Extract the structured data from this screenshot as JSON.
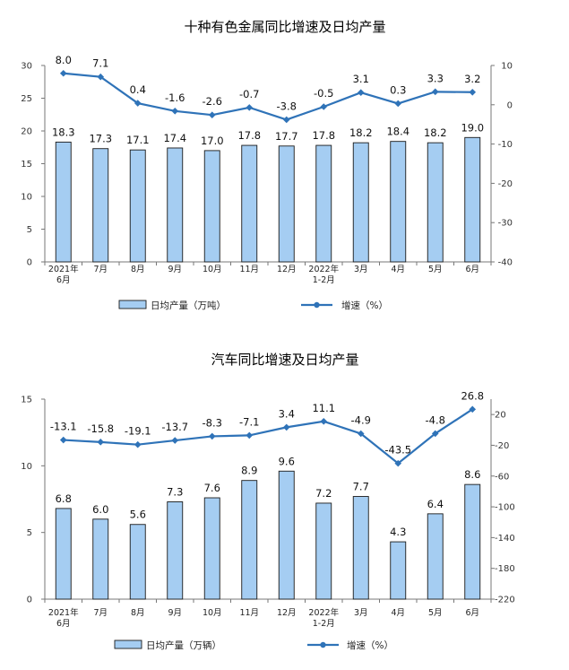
{
  "chart_data": [
    {
      "type": "bar+line",
      "title": "十种有色金属同比增速及日均产量",
      "categories": [
        [
          "2021年",
          "6月"
        ],
        [
          "7月"
        ],
        [
          "8月"
        ],
        [
          "9月"
        ],
        [
          "10月"
        ],
        [
          "11月"
        ],
        [
          "12月"
        ],
        [
          "2022年",
          "1-2月"
        ],
        [
          "3月"
        ],
        [
          "4月"
        ],
        [
          "5月"
        ],
        [
          "6月"
        ]
      ],
      "series": [
        {
          "name": "日均产量（万吨）",
          "type": "bar",
          "axis": "left",
          "values": [
            18.3,
            17.3,
            17.1,
            17.4,
            17.0,
            17.8,
            17.7,
            17.8,
            18.2,
            18.4,
            18.2,
            19.0
          ]
        },
        {
          "name": "增速（%）",
          "type": "line",
          "axis": "right",
          "values": [
            8.0,
            7.1,
            0.4,
            -1.6,
            -2.6,
            -0.7,
            -3.8,
            -0.5,
            3.1,
            0.3,
            3.3,
            3.2
          ]
        }
      ],
      "ylim_left": [
        0,
        30
      ],
      "yticks_left": [
        0,
        5,
        10,
        15,
        20,
        25,
        30
      ],
      "ylim_right": [
        -40,
        10
      ],
      "yticks_right": [
        -40,
        -30,
        -20,
        -10,
        0,
        10
      ],
      "bar_labels": [
        "18.3",
        "17.3",
        "17.1",
        "17.4",
        "17.0",
        "17.8",
        "17.7",
        "17.8",
        "18.2",
        "18.4",
        "18.2",
        "19.0"
      ],
      "line_labels": [
        "8.0",
        "7.1",
        "0.4",
        "-1.6",
        "-2.6",
        "-0.7",
        "-3.8",
        "-0.5",
        "3.1",
        "0.3",
        "3.3",
        "3.2"
      ],
      "legend": [
        "日均产量（万吨）",
        "增速（%）"
      ],
      "legend_position": "bottom",
      "grid": false
    },
    {
      "type": "bar+line",
      "title": "汽车同比增速及日均产量",
      "categories": [
        [
          "2021年",
          "6月"
        ],
        [
          "7月"
        ],
        [
          "8月"
        ],
        [
          "9月"
        ],
        [
          "10月"
        ],
        [
          "11月"
        ],
        [
          "12月"
        ],
        [
          "2022年",
          "1-2月"
        ],
        [
          "3月"
        ],
        [
          "4月"
        ],
        [
          "5月"
        ],
        [
          "6月"
        ]
      ],
      "series": [
        {
          "name": "日均产量（万辆）",
          "type": "bar",
          "axis": "left",
          "values": [
            6.8,
            6.0,
            5.6,
            7.3,
            7.6,
            8.9,
            9.6,
            7.2,
            7.7,
            4.3,
            6.4,
            8.6
          ]
        },
        {
          "name": "增速（%）",
          "type": "line",
          "axis": "right",
          "values": [
            -13.1,
            -15.8,
            -19.1,
            -13.7,
            -8.3,
            -7.1,
            3.4,
            11.1,
            -4.9,
            -43.5,
            -4.8,
            26.8
          ]
        }
      ],
      "ylim_left": [
        0,
        15
      ],
      "yticks_left": [
        0,
        5,
        10,
        15
      ],
      "ylim_right": [
        -220,
        40
      ],
      "yticks_right": [
        -220,
        -180,
        -140,
        -100,
        -60,
        -20,
        20
      ],
      "bar_labels": [
        "6.8",
        "6.0",
        "5.6",
        "7.3",
        "7.6",
        "8.9",
        "9.6",
        "7.2",
        "7.7",
        "4.3",
        "6.4",
        "8.6"
      ],
      "line_labels": [
        "-13.1",
        "-15.8",
        "-19.1",
        "-13.7",
        "-8.3",
        "-7.1",
        "3.4",
        "11.1",
        "-4.9",
        "-43.5",
        "-4.8",
        "26.8"
      ],
      "legend": [
        "日均产量（万辆）",
        "增速（%）"
      ],
      "legend_position": "bottom",
      "grid": false
    }
  ],
  "colors": {
    "bar_fill": "#a5cdf2",
    "bar_stroke": "#1a1a1a",
    "line": "#2f73b8"
  }
}
